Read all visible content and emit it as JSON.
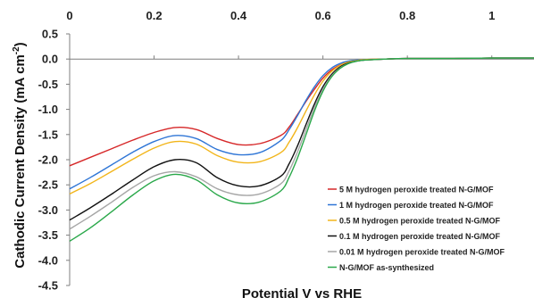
{
  "chart_data": {
    "type": "line",
    "xlabel": "Potential V vs RHE",
    "ylabel": "Cathodic Current Density (mA cm",
    "ylabel_sup": "-2",
    "ylabel_close": ")",
    "xlim": [
      0,
      1.1
    ],
    "ylim": [
      -4.5,
      0.5
    ],
    "x_ticks": [
      "0",
      "0.2",
      "0.4",
      "0.6",
      "0.8",
      "1"
    ],
    "y_ticks": [
      "0.5",
      "0.0",
      "-0.5",
      "-1.0",
      "-1.5",
      "-2.0",
      "-2.5",
      "-3.0",
      "-3.5",
      "-4.0",
      "-4.5"
    ],
    "x_tick_values": [
      0,
      0.2,
      0.4,
      0.6,
      0.8,
      1.0
    ],
    "y_tick_values": [
      0.5,
      0.0,
      -0.5,
      -1.0,
      -1.5,
      -2.0,
      -2.5,
      -3.0,
      -3.5,
      -4.0,
      -4.5
    ],
    "x_axis_position": "top",
    "grid": false,
    "legend_position": "bottom-right",
    "series": [
      {
        "name": "5 M hydrogen peroxide treated N-G/MOF",
        "color": "#d62728",
        "x": [
          0,
          0.05,
          0.1,
          0.15,
          0.2,
          0.25,
          0.3,
          0.35,
          0.4,
          0.45,
          0.5,
          0.52,
          0.54,
          0.56,
          0.58,
          0.6,
          0.62,
          0.64,
          0.66,
          0.68,
          0.7,
          0.75,
          0.8,
          0.9,
          1.0,
          1.1
        ],
        "y": [
          -2.12,
          -1.95,
          -1.78,
          -1.61,
          -1.46,
          -1.36,
          -1.4,
          -1.58,
          -1.7,
          -1.68,
          -1.52,
          -1.35,
          -1.1,
          -0.84,
          -0.6,
          -0.38,
          -0.22,
          -0.12,
          -0.06,
          -0.03,
          -0.01,
          0.0,
          0.01,
          0.01,
          0.02,
          0.02
        ]
      },
      {
        "name": "1 M hydrogen peroxide treated N-G/MOF",
        "color": "#2e75d6",
        "x": [
          0,
          0.05,
          0.1,
          0.15,
          0.2,
          0.25,
          0.3,
          0.35,
          0.4,
          0.45,
          0.5,
          0.52,
          0.54,
          0.56,
          0.58,
          0.6,
          0.62,
          0.64,
          0.66,
          0.68,
          0.7,
          0.75,
          0.8,
          0.9,
          1.0,
          1.1
        ],
        "y": [
          -2.58,
          -2.35,
          -2.1,
          -1.85,
          -1.64,
          -1.52,
          -1.58,
          -1.8,
          -1.9,
          -1.86,
          -1.62,
          -1.4,
          -1.12,
          -0.82,
          -0.55,
          -0.33,
          -0.18,
          -0.09,
          -0.04,
          -0.02,
          -0.01,
          0.0,
          0.01,
          0.01,
          0.02,
          0.02
        ]
      },
      {
        "name": "0.5 M hydrogen peroxide treated N-G/MOF",
        "color": "#f2b51a",
        "x": [
          0,
          0.05,
          0.1,
          0.15,
          0.2,
          0.25,
          0.3,
          0.35,
          0.4,
          0.45,
          0.5,
          0.52,
          0.54,
          0.56,
          0.58,
          0.6,
          0.62,
          0.64,
          0.66,
          0.68,
          0.7,
          0.75,
          0.8,
          0.9,
          1.0,
          1.1
        ],
        "y": [
          -2.68,
          -2.47,
          -2.23,
          -1.99,
          -1.77,
          -1.64,
          -1.69,
          -1.92,
          -2.05,
          -2.04,
          -1.86,
          -1.65,
          -1.36,
          -1.03,
          -0.71,
          -0.44,
          -0.25,
          -0.13,
          -0.06,
          -0.03,
          -0.01,
          0.0,
          0.01,
          0.01,
          0.02,
          0.02
        ]
      },
      {
        "name": "0.1 M hydrogen peroxide treated N-G/MOF",
        "color": "#111111",
        "x": [
          0,
          0.05,
          0.1,
          0.15,
          0.2,
          0.25,
          0.3,
          0.35,
          0.4,
          0.45,
          0.5,
          0.52,
          0.54,
          0.56,
          0.58,
          0.6,
          0.62,
          0.64,
          0.66,
          0.68,
          0.7,
          0.75,
          0.8,
          0.9,
          1.0,
          1.1
        ],
        "y": [
          -3.2,
          -2.95,
          -2.68,
          -2.4,
          -2.14,
          -2.0,
          -2.06,
          -2.36,
          -2.52,
          -2.52,
          -2.33,
          -2.08,
          -1.72,
          -1.3,
          -0.89,
          -0.55,
          -0.31,
          -0.16,
          -0.08,
          -0.04,
          -0.02,
          0.0,
          0.01,
          0.01,
          0.02,
          0.02
        ]
      },
      {
        "name": "0.01 M hydrogen peroxide treated N-G/MOF",
        "color": "#a6a6a6",
        "x": [
          0,
          0.05,
          0.1,
          0.15,
          0.2,
          0.25,
          0.3,
          0.35,
          0.4,
          0.45,
          0.5,
          0.52,
          0.54,
          0.56,
          0.58,
          0.6,
          0.62,
          0.64,
          0.66,
          0.68,
          0.7,
          0.75,
          0.8,
          0.9,
          1.0,
          1.1
        ],
        "y": [
          -3.38,
          -3.12,
          -2.84,
          -2.55,
          -2.32,
          -2.24,
          -2.34,
          -2.58,
          -2.7,
          -2.68,
          -2.48,
          -2.22,
          -1.84,
          -1.4,
          -0.96,
          -0.6,
          -0.34,
          -0.18,
          -0.09,
          -0.04,
          -0.02,
          0.0,
          0.01,
          0.01,
          0.02,
          0.02
        ]
      },
      {
        "name": "N-G/MOF as-synthesized",
        "color": "#2aa84a",
        "x": [
          0,
          0.05,
          0.1,
          0.15,
          0.2,
          0.25,
          0.3,
          0.35,
          0.4,
          0.45,
          0.5,
          0.52,
          0.54,
          0.56,
          0.58,
          0.6,
          0.62,
          0.64,
          0.66,
          0.68,
          0.7,
          0.75,
          0.8,
          0.9,
          1.0,
          1.1
        ],
        "y": [
          -3.62,
          -3.35,
          -3.03,
          -2.7,
          -2.42,
          -2.29,
          -2.4,
          -2.7,
          -2.86,
          -2.84,
          -2.62,
          -2.35,
          -1.96,
          -1.5,
          -1.03,
          -0.64,
          -0.36,
          -0.19,
          -0.09,
          -0.04,
          -0.02,
          0.0,
          0.01,
          0.01,
          0.02,
          0.02
        ]
      }
    ]
  }
}
